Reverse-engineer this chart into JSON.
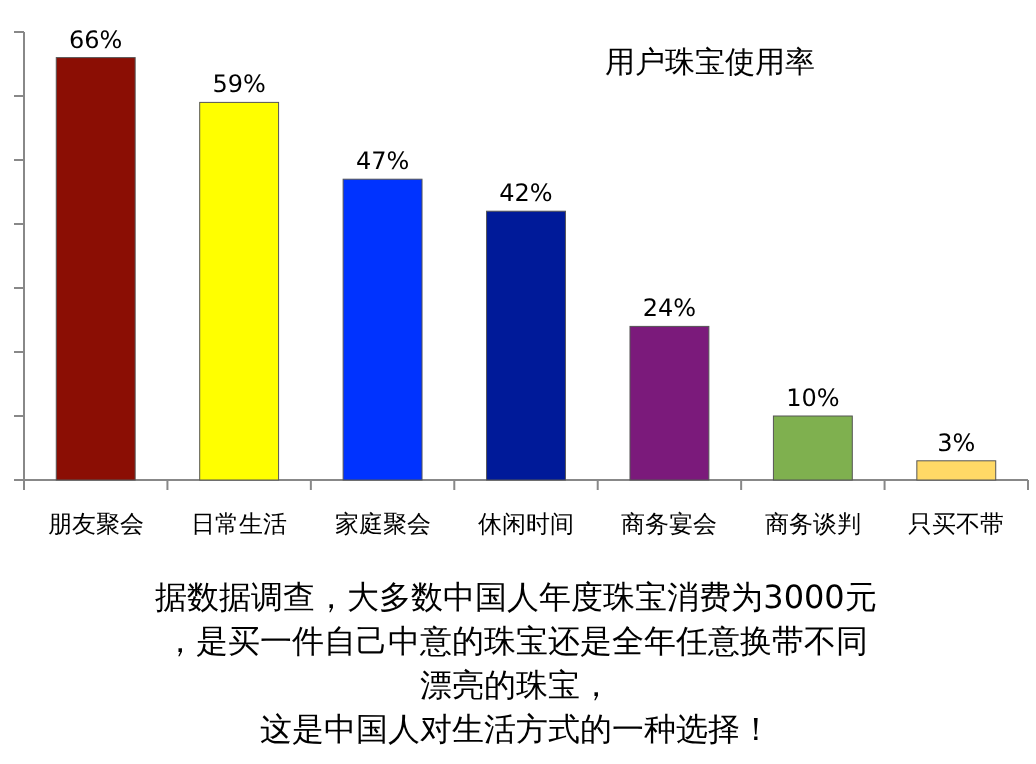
{
  "chart_data": {
    "type": "bar",
    "title": "用户珠宝使用率",
    "categories": [
      "朋友聚会",
      "日常生活",
      "家庭聚会",
      "休闲时间",
      "商务宴会",
      "商务谈判",
      "只买不带"
    ],
    "values": [
      66,
      59,
      47,
      42,
      24,
      10,
      3
    ],
    "colors": [
      "#8b0e04",
      "#ffff00",
      "#0033ff",
      "#001a99",
      "#7b1a7b",
      "#7fb04f",
      "#ffd966"
    ],
    "value_labels": [
      "66%",
      "59%",
      "47%",
      "42%",
      "24%",
      "10%",
      "3%"
    ],
    "ylim": [
      0,
      70
    ],
    "yticks": [
      {
        "value": 0,
        "label": null
      },
      {
        "value": 10,
        "label": null
      },
      {
        "value": 20,
        "label": null
      },
      {
        "value": 30,
        "label": null
      },
      {
        "value": 40,
        "label": null
      },
      {
        "value": 50,
        "label": null
      },
      {
        "value": 60,
        "label": null
      },
      {
        "value": 70,
        "label": null
      }
    ],
    "tick_labels": "x",
    "annotations": [
      "据数据调查，大多数中国人年度珠宝消费为3000元",
      "，是买一件自己中意的珠宝还是全年任意换带不同",
      "漂亮的珠宝，",
      "这是中国人对生活方式的一种选择！"
    ]
  }
}
